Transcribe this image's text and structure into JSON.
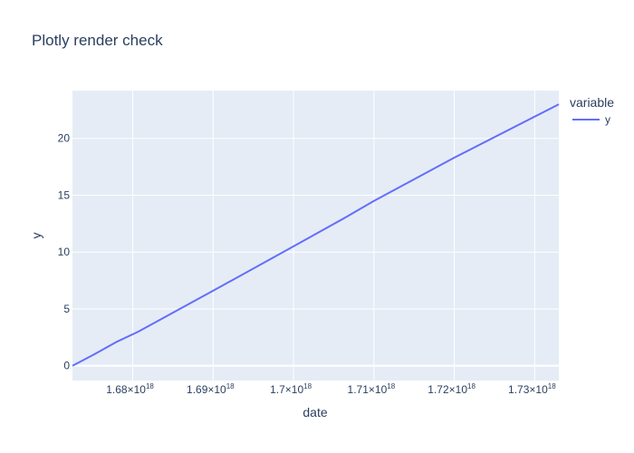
{
  "chart_data": {
    "type": "line",
    "title": "Plotly render check",
    "xlabel": "date",
    "ylabel": "y",
    "legend": {
      "title": "variable",
      "placement": "right"
    },
    "xlim": [
      1.6725e+18,
      1.733e+18
    ],
    "ylim": [
      -1.3,
      24.2
    ],
    "grid": true,
    "plot_background": "#e5ecf6",
    "grid_color": "#ffffff",
    "x_ticks": [
      {
        "value": 1.68e+18,
        "label": "1.68×10",
        "exp": "18"
      },
      {
        "value": 1.69e+18,
        "label": "1.69×10",
        "exp": "18"
      },
      {
        "value": 1.7e+18,
        "label": "1.7×10",
        "exp": "18"
      },
      {
        "value": 1.71e+18,
        "label": "1.71×10",
        "exp": "18"
      },
      {
        "value": 1.72e+18,
        "label": "1.72×10",
        "exp": "18"
      },
      {
        "value": 1.73e+18,
        "label": "1.73×10",
        "exp": "18"
      }
    ],
    "y_ticks": [
      {
        "value": 0,
        "label": "0"
      },
      {
        "value": 5,
        "label": "5"
      },
      {
        "value": 10,
        "label": "10"
      },
      {
        "value": 15,
        "label": "15"
      },
      {
        "value": 20,
        "label": "20"
      }
    ],
    "series": [
      {
        "name": "y",
        "color": "#636efa",
        "x": [
          1.6725e+18,
          1.6752e+18,
          1.678e+18,
          1.6807e+18,
          1.69e+18,
          1.7e+18,
          1.7066e+18,
          1.71e+18,
          1.72e+18,
          1.733e+18
        ],
        "y": [
          0,
          1.0,
          2.1,
          3.0,
          6.6,
          10.5,
          13.1,
          14.5,
          18.3,
          23
        ]
      }
    ]
  }
}
